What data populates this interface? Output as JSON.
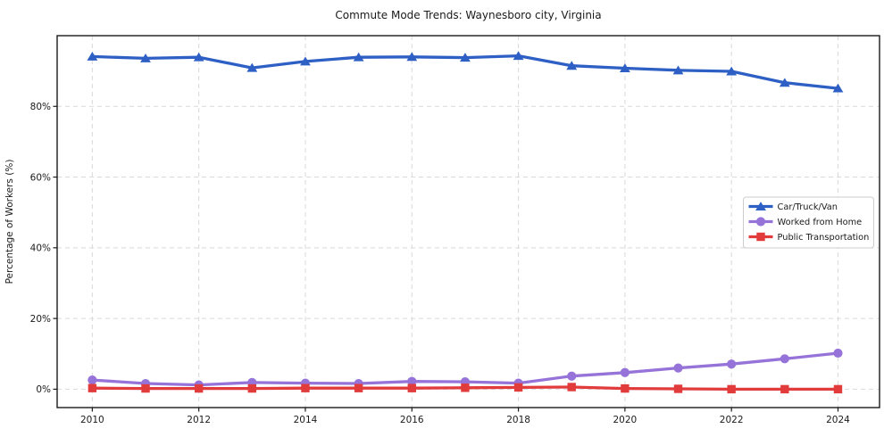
{
  "chart_data": {
    "type": "line",
    "title": "Commute Mode Trends: Waynesboro city, Virginia",
    "xlabel": "",
    "ylabel": "Percentage of Workers (%)",
    "x": [
      2010,
      2011,
      2012,
      2013,
      2014,
      2015,
      2016,
      2017,
      2018,
      2019,
      2020,
      2021,
      2022,
      2023,
      2024
    ],
    "series": [
      {
        "name": "Car/Truck/Van",
        "color": "#2e5fc4",
        "marker": "triangle",
        "values": [
          94.1,
          93.6,
          93.9,
          90.9,
          92.7,
          93.9,
          94.0,
          93.8,
          94.3,
          91.5,
          90.8,
          90.2,
          89.9,
          86.7,
          85.1
        ]
      },
      {
        "name": "Worked from Home",
        "color": "#9673d8",
        "marker": "circle",
        "values": [
          2.6,
          1.6,
          1.2,
          1.9,
          1.7,
          1.6,
          2.2,
          2.1,
          1.7,
          3.7,
          4.7,
          6.0,
          7.1,
          8.6,
          10.2
        ]
      },
      {
        "name": "Public Transportation",
        "color": "#e23b3c",
        "marker": "square",
        "values": [
          0.3,
          0.2,
          0.2,
          0.2,
          0.3,
          0.3,
          0.3,
          0.4,
          0.5,
          0.6,
          0.2,
          0.1,
          0.0,
          0.0,
          0.0
        ]
      }
    ],
    "xticks": [
      2010,
      2012,
      2014,
      2016,
      2018,
      2020,
      2022,
      2024
    ],
    "yticks": [
      0,
      20,
      40,
      60,
      80
    ],
    "ytick_labels": [
      "0%",
      "20%",
      "40%",
      "60%",
      "80%"
    ],
    "xlim": [
      2009.34,
      2024.78
    ],
    "ylim": [
      -5.2,
      100
    ],
    "grid": true,
    "grid_color": "#d9d9d9",
    "spine_color": "#1a1a1a",
    "legend_position": "center right",
    "legend_labels": [
      "Car/Truck/Van",
      "Worked from Home",
      "Public Transportation"
    ]
  }
}
